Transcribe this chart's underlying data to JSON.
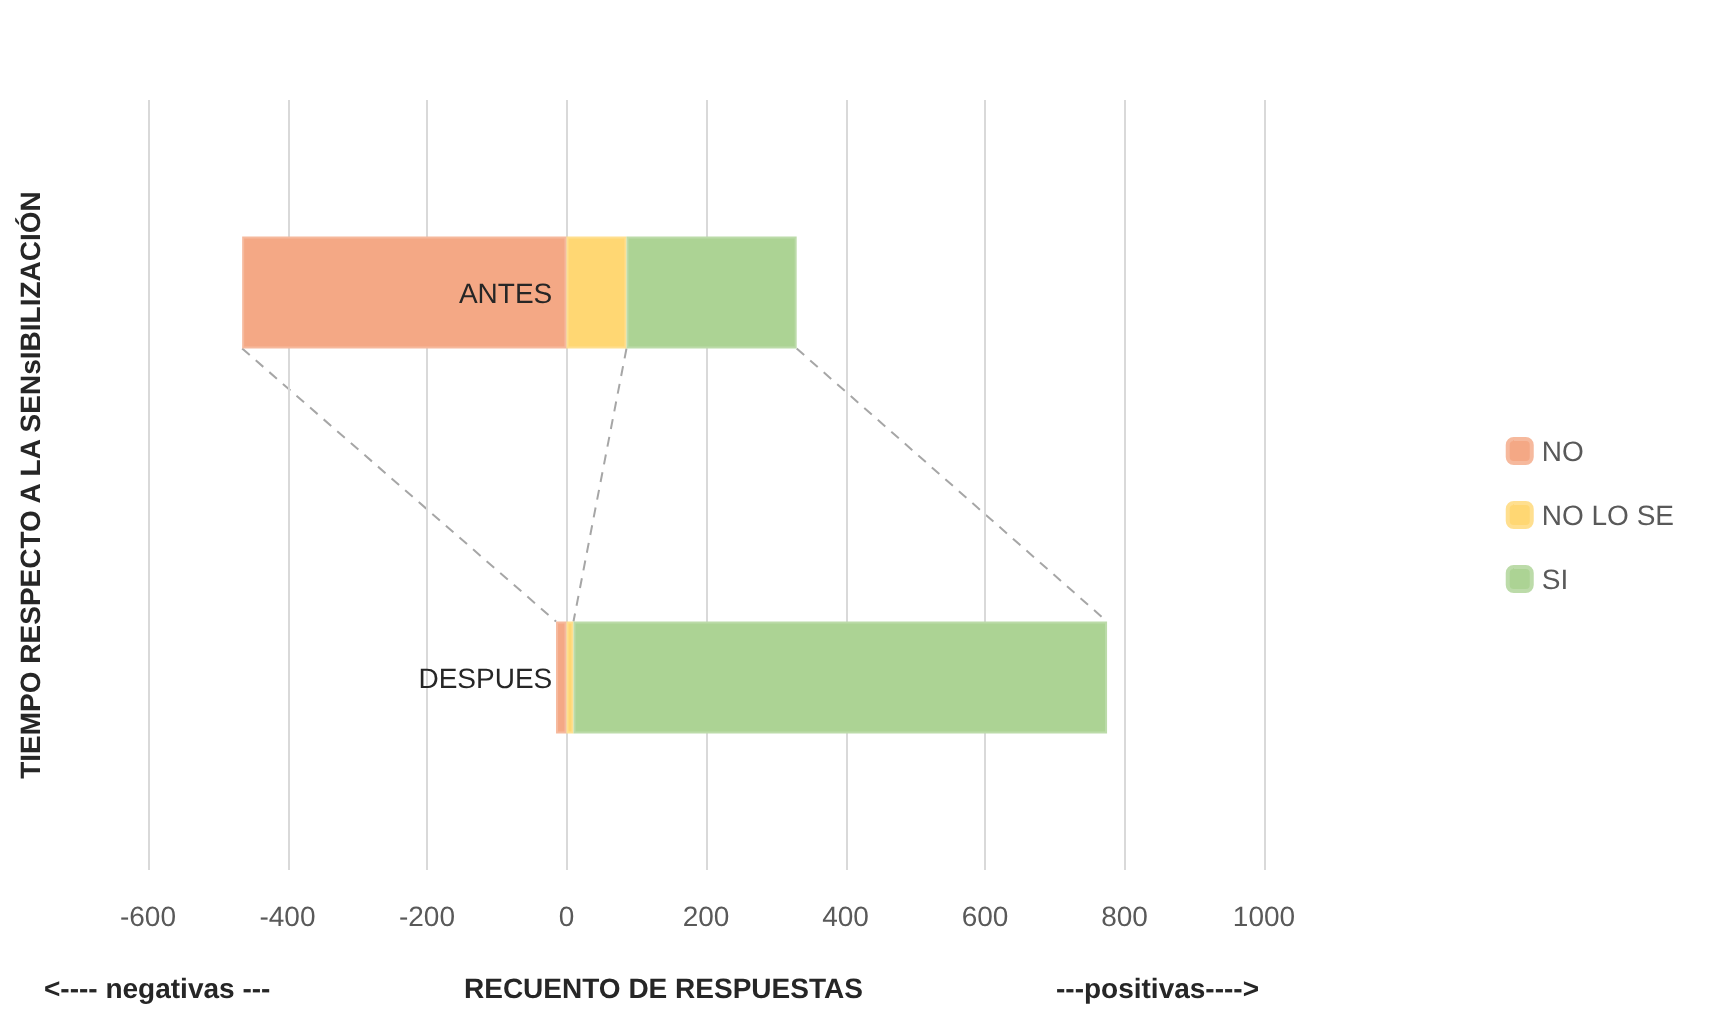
{
  "chart_data": {
    "type": "bar",
    "orientation": "horizontal",
    "stacked": true,
    "ylabel": "TIEMPO RESPECTO A LA SENsIBILIZACIÓN",
    "xlabel": "RECUENTO DE RESPUESTAS",
    "annotations": [
      "<---- negativas ---",
      "---positivas---->"
    ],
    "categories": [
      "ANTES",
      "DESPUES"
    ],
    "series": [
      {
        "name": "NO",
        "color": "#f4a885",
        "values": [
          -465,
          -15
        ]
      },
      {
        "name": "NO LO SE",
        "color": "#ffd773",
        "values": [
          86,
          10
        ]
      },
      {
        "name": "SI",
        "color": "#acd394",
        "values": [
          244,
          765
        ]
      }
    ],
    "xlim": [
      -600,
      1000
    ],
    "xticks": [
      -600,
      -400,
      -200,
      0,
      200,
      400,
      600,
      800,
      1000
    ],
    "grid": "x",
    "legend": "right"
  }
}
